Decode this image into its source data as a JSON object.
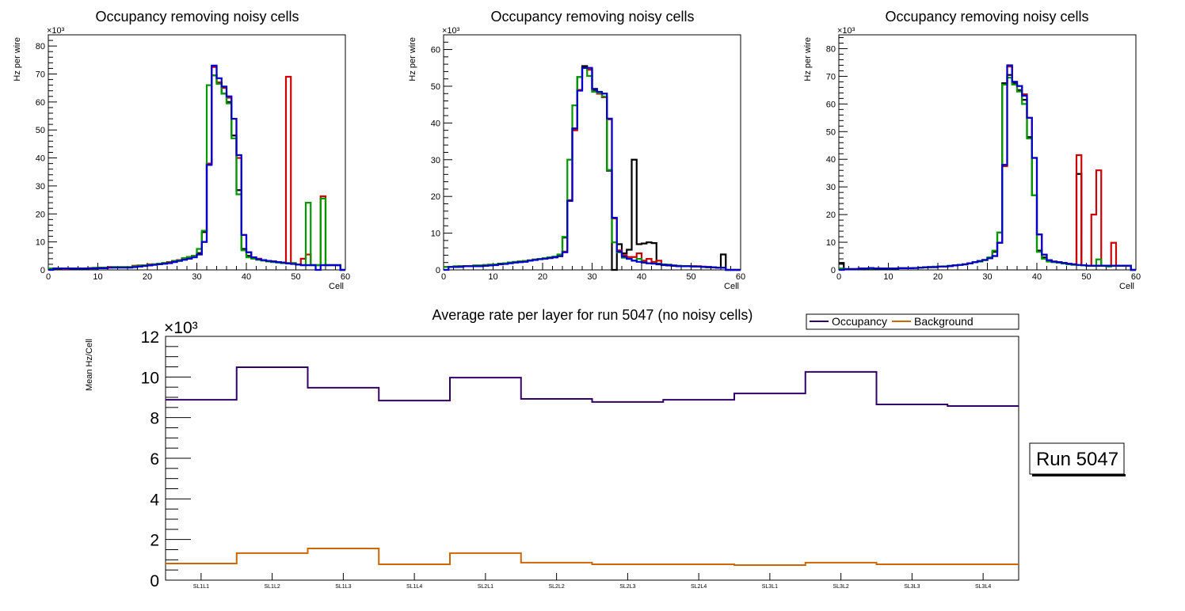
{
  "chart_data": [
    {
      "type": "line",
      "id": "panel1",
      "title": "Occupancy removing noisy cells",
      "xlabel": "Cell",
      "ylabel": "Hz per wire",
      "y_multiplier": "×10³",
      "xlim": [
        0,
        60
      ],
      "ylim": [
        0,
        84
      ],
      "x_ticks": [
        0,
        10,
        20,
        30,
        40,
        50,
        60
      ],
      "y_ticks": [
        0,
        10,
        20,
        30,
        40,
        50,
        60,
        70,
        80
      ],
      "bin_width": 1,
      "series": [
        {
          "name": "black",
          "color": "#000000",
          "values": [
            0.3,
            0.5,
            0.5,
            0.3,
            0.5,
            0.5,
            0.5,
            0.5,
            0.6,
            0.7,
            0.8,
            0.8,
            1.0,
            1.0,
            1.0,
            1.0,
            1.0,
            1.2,
            1.5,
            1.6,
            1.8,
            2.0,
            2.2,
            2.5,
            2.8,
            3.2,
            3.5,
            4.2,
            4.6,
            5.0,
            6.0,
            13.5,
            38.0,
            69.5,
            67.0,
            63.0,
            60.0,
            48.0,
            28.5,
            7.5,
            5.0,
            4.3,
            3.8,
            3.5,
            3.2,
            3.0,
            2.8,
            2.6,
            2.4,
            2.4,
            1.9,
            1.7,
            1.7,
            1.7,
            1.7,
            1.7,
            1.7,
            1.7,
            1.7,
            0
          ]
        },
        {
          "name": "red",
          "color": "#cc0000",
          "values": [
            0.3,
            0.5,
            0.5,
            0.3,
            0.5,
            0.5,
            0.5,
            0.5,
            0.6,
            0.7,
            0.8,
            0.8,
            1.0,
            1.0,
            1.0,
            1.0,
            1.0,
            1.5,
            1.6,
            1.6,
            2.0,
            2.0,
            2.2,
            2.5,
            2.8,
            3.0,
            3.5,
            4.2,
            4.6,
            5.0,
            5.5,
            10.0,
            38.0,
            72.5,
            67.0,
            65.0,
            61.5,
            54.0,
            40.0,
            12.5,
            6.3,
            4.5,
            4.0,
            3.5,
            3.2,
            3.0,
            2.8,
            2.6,
            69.0,
            2.4,
            1.9,
            4.0,
            5.5,
            1.7,
            1.7,
            26.3,
            1.7,
            1.7,
            1.7,
            0
          ]
        },
        {
          "name": "green",
          "color": "#009900",
          "values": [
            0.5,
            0.5,
            0.5,
            0.5,
            0.5,
            0.5,
            0.5,
            0.5,
            0.6,
            0.7,
            0.8,
            0.8,
            0.8,
            1.0,
            1.0,
            1.0,
            1.0,
            1.3,
            1.5,
            1.6,
            1.8,
            2.0,
            2.2,
            2.5,
            2.6,
            3.0,
            3.4,
            4.2,
            4.6,
            5.0,
            7.5,
            14.0,
            66.0,
            69.5,
            66.5,
            63.0,
            59.5,
            47.0,
            27.0,
            7.0,
            4.5,
            4.0,
            3.6,
            3.3,
            3.0,
            2.8,
            2.6,
            2.4,
            2.4,
            2.4,
            1.9,
            1.7,
            24.0,
            1.7,
            1.7,
            25.5,
            1.7,
            1.7,
            1.7,
            0
          ]
        },
        {
          "name": "blue",
          "color": "#0000cc",
          "values": [
            0,
            0.5,
            0.5,
            0.5,
            0.5,
            0.5,
            0.5,
            0.5,
            0.5,
            0.5,
            0.6,
            0.6,
            0.8,
            0.8,
            0.8,
            0.8,
            0.8,
            1.0,
            1.2,
            1.4,
            1.6,
            1.8,
            2.0,
            2.2,
            2.4,
            2.8,
            3.2,
            3.6,
            4.0,
            4.5,
            5.5,
            10.0,
            37.5,
            73.0,
            68.5,
            65.5,
            62.0,
            54.0,
            41.0,
            12.5,
            6.3,
            4.5,
            3.8,
            3.5,
            3.2,
            3.0,
            2.8,
            2.6,
            2.3,
            2.1,
            1.9,
            1.7,
            1.7,
            1.7,
            0,
            1.7,
            1.7,
            1.7,
            1.7,
            0
          ]
        }
      ]
    },
    {
      "type": "line",
      "id": "panel2",
      "title": "Occupancy removing noisy cells",
      "xlabel": "Cell",
      "ylabel": "Hz per wire",
      "y_multiplier": "×10³",
      "xlim": [
        0,
        60
      ],
      "ylim": [
        0,
        64
      ],
      "x_ticks": [
        0,
        10,
        20,
        30,
        40,
        50,
        60
      ],
      "y_ticks": [
        0,
        10,
        20,
        30,
        40,
        50,
        60
      ],
      "bin_width": 1,
      "series": [
        {
          "name": "black",
          "color": "#000000",
          "values": [
            0.8,
            0.8,
            0.8,
            1.0,
            1.0,
            1.0,
            1.2,
            1.2,
            1.3,
            1.4,
            1.5,
            1.7,
            1.8,
            2.0,
            2.1,
            2.3,
            2.4,
            2.6,
            2.8,
            3.0,
            3.2,
            3.4,
            3.6,
            4.0,
            8.8,
            18.8,
            38.5,
            52.5,
            55.5,
            54.5,
            49.0,
            48.0,
            47.0,
            27.0,
            0,
            7.0,
            4.5,
            5.5,
            30.0,
            7.0,
            7.2,
            7.5,
            7.3,
            1.5,
            1.3,
            1.2,
            1.1,
            1.0,
            1.0,
            1.0,
            1.0,
            0.9,
            0.8,
            0.7,
            0.7,
            0.6,
            4.2,
            0,
            0,
            0
          ]
        },
        {
          "name": "red",
          "color": "#cc0000",
          "values": [
            0.8,
            0.8,
            0.8,
            1.0,
            1.0,
            1.0,
            1.2,
            1.2,
            1.3,
            1.4,
            1.5,
            1.6,
            1.8,
            2.0,
            2.1,
            2.2,
            2.4,
            2.6,
            2.8,
            3.0,
            3.2,
            3.3,
            3.5,
            3.8,
            5.0,
            19.0,
            38.0,
            49.0,
            55.0,
            54.5,
            48.5,
            48.0,
            47.0,
            41.0,
            14.0,
            5.3,
            4.0,
            3.5,
            3.5,
            4.5,
            2.5,
            3.0,
            2.2,
            2.5,
            1.5,
            1.4,
            1.2,
            1.1,
            1.0,
            1.0,
            1.0,
            1.0,
            0.9,
            0.8,
            0.7,
            0.6,
            0.6,
            0,
            0,
            0
          ]
        },
        {
          "name": "green",
          "color": "#009900",
          "values": [
            0.8,
            0.8,
            1.0,
            1.0,
            1.0,
            1.0,
            1.2,
            1.2,
            1.3,
            1.4,
            1.5,
            1.6,
            1.8,
            2.0,
            2.2,
            2.3,
            2.4,
            2.6,
            2.8,
            3.0,
            3.2,
            3.4,
            3.6,
            4.2,
            9.0,
            30.0,
            44.8,
            52.5,
            55.0,
            52.8,
            48.5,
            48.2,
            47.2,
            27.2,
            7.5,
            4.8,
            3.3,
            3.0,
            2.5,
            3.0,
            2.0,
            1.8,
            1.8,
            1.7,
            1.5,
            1.4,
            1.2,
            1.1,
            1.0,
            1.0,
            0.9,
            0.9,
            0.8,
            0.8,
            0.7,
            0.6,
            0.6,
            0,
            0,
            0
          ]
        },
        {
          "name": "blue",
          "color": "#0000cc",
          "values": [
            0,
            0.8,
            0.8,
            0.8,
            1.0,
            1.0,
            1.0,
            1.0,
            1.1,
            1.2,
            1.3,
            1.5,
            1.6,
            1.8,
            2.0,
            2.1,
            2.2,
            2.5,
            2.7,
            2.9,
            3.0,
            3.2,
            3.4,
            3.7,
            4.8,
            18.8,
            38.5,
            48.8,
            55.0,
            55.0,
            49.3,
            48.5,
            48.0,
            41.2,
            14.2,
            5.0,
            3.6,
            3.0,
            2.5,
            2.2,
            2.0,
            1.8,
            1.7,
            1.6,
            1.4,
            1.3,
            1.2,
            1.0,
            1.0,
            1.0,
            0.9,
            0.9,
            0.8,
            0.8,
            0.7,
            0.6,
            0.6,
            0,
            0,
            0
          ]
        }
      ]
    },
    {
      "type": "line",
      "id": "panel3",
      "title": "Occupancy removing noisy cells",
      "xlabel": "Cell",
      "ylabel": "Hz per wire",
      "y_multiplier": "×10³",
      "xlim": [
        0,
        60
      ],
      "ylim": [
        0,
        85
      ],
      "x_ticks": [
        0,
        10,
        20,
        30,
        40,
        50,
        60
      ],
      "y_ticks": [
        0,
        10,
        20,
        30,
        40,
        50,
        60,
        70,
        80
      ],
      "bin_width": 1,
      "series": [
        {
          "name": "black",
          "color": "#000000",
          "values": [
            2.5,
            0.3,
            0.3,
            0.3,
            0.5,
            0.5,
            0.5,
            0.5,
            0.5,
            0.5,
            0.5,
            0.5,
            0.6,
            0.6,
            0.6,
            0.7,
            0.8,
            0.9,
            1.0,
            1.0,
            1.2,
            1.2,
            1.4,
            1.6,
            1.8,
            2.0,
            2.4,
            2.8,
            3.2,
            3.6,
            4.2,
            6.5,
            13.5,
            67.5,
            70.5,
            67.5,
            65.0,
            61.5,
            48.0,
            27.0,
            7.0,
            4.5,
            3.2,
            3.0,
            2.8,
            2.5,
            2.2,
            2.0,
            34.7,
            1.7,
            1.5,
            1.5,
            1.5,
            1.5,
            1.5,
            1.5,
            1.5,
            1.5,
            1.5,
            0
          ]
        },
        {
          "name": "red",
          "color": "#cc0000",
          "values": [
            0.3,
            0.3,
            0.3,
            0.3,
            0.5,
            0.5,
            0.5,
            0.5,
            0.5,
            0.5,
            0.5,
            0.5,
            0.6,
            0.6,
            0.6,
            0.7,
            0.8,
            0.9,
            1.0,
            1.0,
            1.2,
            1.2,
            1.4,
            1.6,
            1.8,
            2.0,
            2.4,
            2.8,
            3.2,
            3.6,
            4.2,
            5.0,
            9.8,
            37.5,
            73.5,
            68.0,
            66.5,
            63.5,
            55.0,
            40.5,
            12.8,
            5.5,
            3.5,
            3.0,
            2.8,
            2.5,
            2.2,
            2.0,
            41.5,
            1.7,
            1.5,
            20.0,
            36.0,
            1.5,
            1.5,
            9.8,
            1.5,
            1.5,
            1.5,
            0
          ]
        },
        {
          "name": "green",
          "color": "#009900",
          "values": [
            0.5,
            0.3,
            0.3,
            0.3,
            0.5,
            0.5,
            0.5,
            0.5,
            0.5,
            0.5,
            0.5,
            0.5,
            0.6,
            0.6,
            0.6,
            0.7,
            0.8,
            1.0,
            1.0,
            1.2,
            1.2,
            1.3,
            1.5,
            1.6,
            1.8,
            2.0,
            2.4,
            2.8,
            3.0,
            3.5,
            4.5,
            7.0,
            13.5,
            67.0,
            69.5,
            67.0,
            64.5,
            60.0,
            47.5,
            27.0,
            6.5,
            4.0,
            3.0,
            2.8,
            2.6,
            2.3,
            2.0,
            1.8,
            1.7,
            1.6,
            1.5,
            1.5,
            3.8,
            1.5,
            1.2,
            1.5,
            1.5,
            1.5,
            1.5,
            0
          ]
        },
        {
          "name": "blue",
          "color": "#0000cc",
          "values": [
            0,
            0.3,
            0.3,
            0.3,
            0.5,
            0.5,
            0.7,
            0.5,
            0.5,
            0.5,
            0.5,
            0.5,
            0.6,
            0.6,
            0.6,
            0.7,
            0.8,
            0.9,
            1.0,
            1.0,
            1.2,
            1.2,
            1.4,
            1.6,
            1.8,
            2.0,
            2.4,
            2.8,
            3.2,
            3.6,
            4.2,
            5.0,
            9.8,
            38.0,
            74.0,
            68.0,
            66.5,
            63.0,
            55.0,
            40.5,
            12.8,
            5.5,
            3.5,
            3.0,
            2.8,
            2.5,
            2.2,
            2.0,
            1.8,
            1.7,
            1.5,
            1.5,
            1.5,
            1.5,
            1.5,
            1.5,
            1.5,
            1.5,
            1.5,
            0
          ]
        }
      ]
    },
    {
      "type": "line",
      "id": "summary",
      "title": "Average rate per layer for run 5047 (no noisy cells)",
      "xlabel": "",
      "ylabel": "Mean Hz/Cell",
      "y_multiplier": "×10³",
      "ylim": [
        0,
        12
      ],
      "y_ticks": [
        0,
        2,
        4,
        6,
        8,
        10,
        12
      ],
      "categories": [
        "SL1L1",
        "SL1L2",
        "SL1L3",
        "SL1L4",
        "SL2L1",
        "SL2L2",
        "SL2L3",
        "SL2L4",
        "SL3L1",
        "SL3L2",
        "SL3L3",
        "SL3L4"
      ],
      "legend": {
        "placement": "top-right",
        "entries": [
          "Occupancy",
          "Background"
        ]
      },
      "series": [
        {
          "name": "Occupancy",
          "color": "#330066",
          "values": [
            8.88,
            10.48,
            9.47,
            8.84,
            9.97,
            8.92,
            8.77,
            8.88,
            9.19,
            10.25,
            8.65,
            8.57
          ]
        },
        {
          "name": "Background",
          "color": "#cc6600",
          "values": [
            0.82,
            1.33,
            1.56,
            0.78,
            1.33,
            0.86,
            0.78,
            0.78,
            0.74,
            0.86,
            0.78,
            0.78
          ]
        }
      ]
    }
  ],
  "run_label": "Run 5047"
}
